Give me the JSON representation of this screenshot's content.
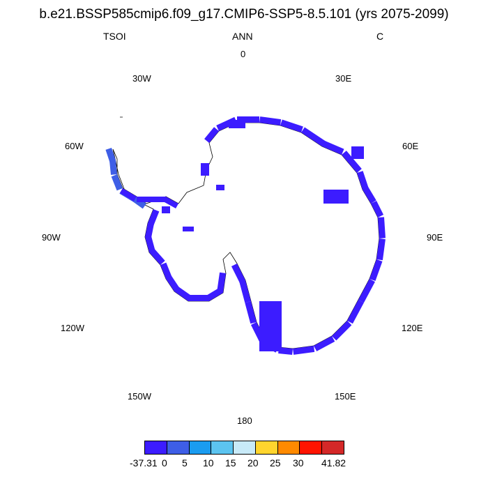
{
  "title": "b.e21.BSSP585cmip6.f09_g17.CMIP6-SSP5-8.5.101 (yrs 2075-2099)",
  "left_string": "TSOI",
  "center_string": "ANN",
  "right_string": "C",
  "longitude_labels": {
    "n": "0",
    "e30": "30E",
    "e60": "60E",
    "e90": "90E",
    "e120": "120E",
    "e150": "150E",
    "s": "180",
    "w150": "150W",
    "w120": "120W",
    "w90": "90W",
    "w60": "60W",
    "w30": "30W"
  },
  "colors": {
    "main_fill": "#3c1cff",
    "peninsula_fill": "#3e5ee6",
    "coastline": "#000000"
  },
  "colorbar": {
    "colors": [
      "#3c1cff",
      "#3e5ee6",
      "#1a9cf0",
      "#5cc4f0",
      "#c8eaf8",
      "#ffd52e",
      "#ff8a00",
      "#ff1400",
      "#d42828"
    ],
    "labels": [
      "-37.31",
      "0",
      "5",
      "10",
      "15",
      "20",
      "25",
      "30",
      "41.82"
    ]
  }
}
